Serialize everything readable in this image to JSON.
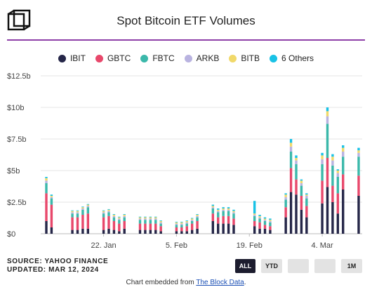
{
  "header": {
    "title": "Spot Bitcoin ETF Volumes"
  },
  "legend": [
    {
      "label": "IBIT",
      "color": "#252648"
    },
    {
      "label": "GBTC",
      "color": "#e8486b"
    },
    {
      "label": "FBTC",
      "color": "#3bb8aa"
    },
    {
      "label": "ARKB",
      "color": "#b9b3e0"
    },
    {
      "label": "BITB",
      "color": "#f1d96a"
    },
    {
      "label": "6 Others",
      "color": "#19c2e6"
    }
  ],
  "footer": {
    "source": "SOURCE: YAHOO FINANCE",
    "updated": "UPDATED: MAR 12, 2024",
    "embed_text": "Chart embedded from ",
    "embed_link": "The Block Data",
    "embed_end": "."
  },
  "range_buttons": [
    {
      "label": "ALL",
      "active": true
    },
    {
      "label": "YTD",
      "active": false
    },
    {
      "label": "",
      "active": false
    },
    {
      "label": "",
      "active": false
    },
    {
      "label": "1M",
      "active": false
    }
  ],
  "chart_data": {
    "type": "bar",
    "stacked": true,
    "title": "Spot Bitcoin ETF Volumes",
    "xlabel": "",
    "ylabel": "",
    "ylim": [
      0,
      12.5
    ],
    "y_ticks": [
      "$0",
      "$2.5b",
      "$5b",
      "$7.5b",
      "$10b",
      "$12.5b"
    ],
    "x_tick_labels": [
      {
        "label": "22. Jan",
        "date": "2024-01-22"
      },
      {
        "label": "5. Feb",
        "date": "2024-02-05"
      },
      {
        "label": "19. Feb",
        "date": "2024-02-19"
      },
      {
        "label": "4. Mar",
        "date": "2024-03-04"
      }
    ],
    "unit": "USD billions",
    "categories": [
      "2024-01-11",
      "2024-01-12",
      "2024-01-16",
      "2024-01-17",
      "2024-01-18",
      "2024-01-19",
      "2024-01-22",
      "2024-01-23",
      "2024-01-24",
      "2024-01-25",
      "2024-01-26",
      "2024-01-29",
      "2024-01-30",
      "2024-01-31",
      "2024-02-01",
      "2024-02-02",
      "2024-02-05",
      "2024-02-06",
      "2024-02-07",
      "2024-02-08",
      "2024-02-09",
      "2024-02-12",
      "2024-02-13",
      "2024-02-14",
      "2024-02-15",
      "2024-02-16",
      "2024-02-20",
      "2024-02-21",
      "2024-02-22",
      "2024-02-23",
      "2024-02-26",
      "2024-02-27",
      "2024-02-28",
      "2024-02-29",
      "2024-03-01",
      "2024-03-04",
      "2024-03-05",
      "2024-03-06",
      "2024-03-07",
      "2024-03-08",
      "2024-03-11"
    ],
    "series": [
      {
        "name": "IBIT",
        "values": [
          1.0,
          0.5,
          0.3,
          0.3,
          0.4,
          0.4,
          0.3,
          0.4,
          0.3,
          0.2,
          0.4,
          0.3,
          0.3,
          0.3,
          0.3,
          0.2,
          0.2,
          0.2,
          0.2,
          0.3,
          0.4,
          1.0,
          0.8,
          0.8,
          0.8,
          0.7,
          0.6,
          0.4,
          0.4,
          0.3,
          1.3,
          3.3,
          3.1,
          1.9,
          1.3,
          2.4,
          3.7,
          2.5,
          1.6,
          3.5,
          3.0
        ]
      },
      {
        "name": "GBTC",
        "values": [
          2.2,
          1.8,
          1.0,
          1.0,
          1.1,
          1.2,
          1.0,
          1.0,
          0.7,
          0.6,
          0.6,
          0.5,
          0.5,
          0.5,
          0.5,
          0.4,
          0.3,
          0.3,
          0.4,
          0.5,
          0.6,
          0.6,
          0.5,
          0.6,
          0.6,
          0.5,
          0.4,
          0.5,
          0.3,
          0.3,
          0.8,
          1.9,
          1.2,
          1.1,
          0.9,
          1.8,
          2.3,
          1.3,
          1.6,
          1.2,
          1.6
        ]
      },
      {
        "name": "FBTC",
        "values": [
          0.8,
          0.5,
          0.3,
          0.3,
          0.4,
          0.5,
          0.3,
          0.3,
          0.3,
          0.3,
          0.3,
          0.3,
          0.3,
          0.3,
          0.3,
          0.2,
          0.2,
          0.2,
          0.2,
          0.2,
          0.3,
          0.4,
          0.4,
          0.4,
          0.4,
          0.4,
          0.4,
          0.3,
          0.3,
          0.3,
          0.6,
          1.3,
          1.2,
          0.8,
          0.6,
          1.3,
          2.7,
          1.6,
          1.3,
          1.4,
          1.5
        ]
      },
      {
        "name": "ARKB",
        "values": [
          0.2,
          0.1,
          0.1,
          0.1,
          0.1,
          0.1,
          0.1,
          0.1,
          0.1,
          0.1,
          0.1,
          0.1,
          0.1,
          0.1,
          0.1,
          0.1,
          0.1,
          0.1,
          0.1,
          0.1,
          0.1,
          0.1,
          0.1,
          0.1,
          0.1,
          0.1,
          0.1,
          0.1,
          0.1,
          0.1,
          0.2,
          0.4,
          0.3,
          0.2,
          0.2,
          0.4,
          0.6,
          0.4,
          0.3,
          0.4,
          0.3
        ]
      },
      {
        "name": "BITB",
        "values": [
          0.2,
          0.1,
          0.1,
          0.1,
          0.1,
          0.1,
          0.1,
          0.1,
          0.1,
          0.1,
          0.1,
          0.1,
          0.1,
          0.1,
          0.1,
          0.1,
          0.1,
          0.1,
          0.1,
          0.1,
          0.1,
          0.1,
          0.1,
          0.1,
          0.1,
          0.1,
          0.1,
          0.1,
          0.1,
          0.1,
          0.2,
          0.3,
          0.2,
          0.2,
          0.1,
          0.3,
          0.4,
          0.3,
          0.2,
          0.3,
          0.2
        ]
      },
      {
        "name": "6 Others",
        "values": [
          0.1,
          0.1,
          0.05,
          0.05,
          0.05,
          0.05,
          0.05,
          0.05,
          0.05,
          0.05,
          0.05,
          0.05,
          0.05,
          0.05,
          0.05,
          0.05,
          0.05,
          0.05,
          0.05,
          0.05,
          0.05,
          0.1,
          0.1,
          0.1,
          0.1,
          0.1,
          1.0,
          0.1,
          0.1,
          0.1,
          0.1,
          0.3,
          0.2,
          0.1,
          0.1,
          0.2,
          0.3,
          0.2,
          0.1,
          0.2,
          0.2
        ]
      }
    ],
    "grid": true,
    "legend_position": "top"
  }
}
